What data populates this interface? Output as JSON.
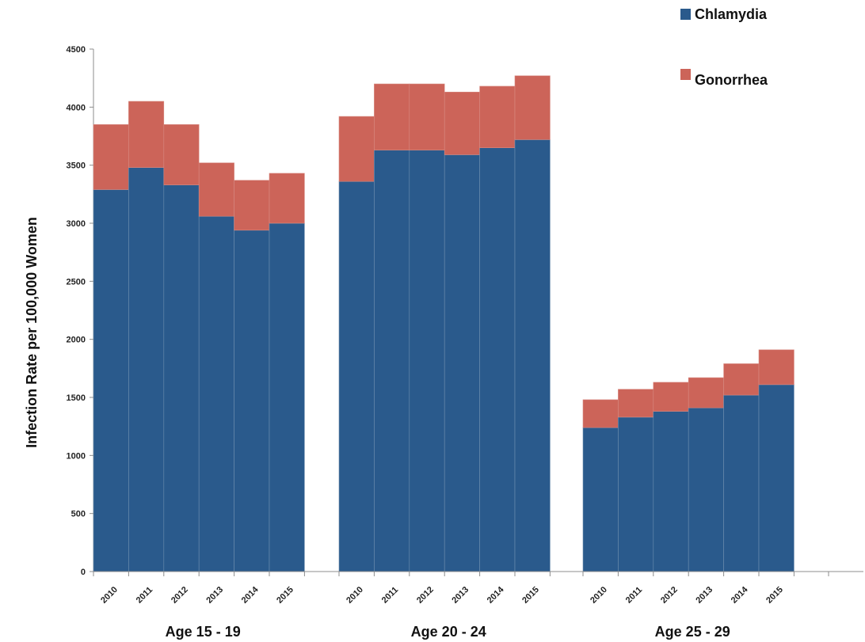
{
  "chart_data": {
    "type": "bar",
    "stacked": true,
    "ylabel": "Infection Rate per 100,000 Women",
    "ylim": [
      0,
      4500
    ],
    "yticks": [
      0,
      500,
      1000,
      1500,
      2000,
      2500,
      3000,
      3500,
      4000,
      4500
    ],
    "grid": false,
    "legend_position": "top-right",
    "groups": [
      {
        "label": "Age 15 - 19",
        "years": [
          "2010",
          "2011",
          "2012",
          "2013",
          "2014",
          "2015"
        ],
        "chlamydia": [
          3290,
          3480,
          3330,
          3060,
          2940,
          3000
        ],
        "gonorrhea": [
          560,
          570,
          520,
          460,
          430,
          430
        ]
      },
      {
        "label": "Age 20  - 24",
        "years": [
          "2010",
          "2011",
          "2012",
          "2013",
          "2014",
          "2015"
        ],
        "chlamydia": [
          3360,
          3630,
          3630,
          3590,
          3650,
          3720
        ],
        "gonorrhea": [
          560,
          570,
          570,
          540,
          530,
          550
        ]
      },
      {
        "label": "Age 25 - 29",
        "years": [
          "2010",
          "2011",
          "2012",
          "2013",
          "2014",
          "2015"
        ],
        "chlamydia": [
          1240,
          1330,
          1380,
          1410,
          1520,
          1610
        ],
        "gonorrhea": [
          240,
          240,
          250,
          260,
          270,
          300
        ]
      }
    ],
    "series": [
      {
        "name": "Chlamydia",
        "color": "#2a5a8c"
      },
      {
        "name": "Gonorrhea",
        "color": "#cc6459"
      }
    ]
  }
}
